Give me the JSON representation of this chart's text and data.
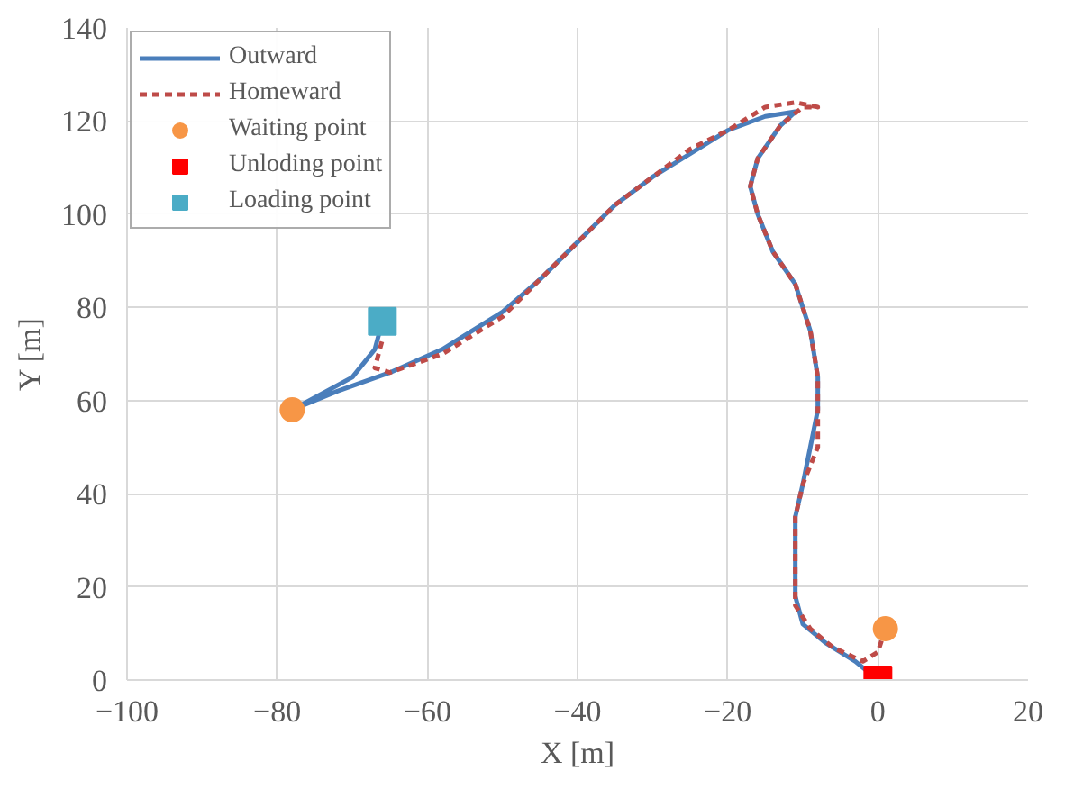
{
  "chart_data": {
    "type": "line",
    "xlabel": "X [m]",
    "ylabel": "Y [m]",
    "xlim": [
      -100,
      20
    ],
    "xticks": [
      -100,
      -80,
      -60,
      -40,
      -20,
      0,
      20
    ],
    "ylim": [
      0,
      140
    ],
    "yticks": [
      0,
      20,
      40,
      60,
      80,
      100,
      120,
      140
    ],
    "grid": true,
    "legend": "top left",
    "series": [
      {
        "name": "Outward",
        "color": "#4a7ebb",
        "line_style": "solid",
        "x": [
          -66,
          -67,
          -70,
          -78,
          -72,
          -65,
          -58,
          -50,
          -45,
          -40,
          -35,
          -30,
          -25,
          -20,
          -15,
          -11,
          -13,
          -16,
          -17,
          -16,
          -14,
          -11,
          -9,
          -8,
          -8,
          -9,
          -10,
          -11,
          -11,
          -11,
          -10,
          -7,
          -3,
          0
        ],
        "values": [
          77,
          71,
          65,
          58,
          62,
          66,
          71,
          79,
          86,
          94,
          102,
          108,
          113,
          118,
          121,
          122,
          119,
          112,
          106,
          100,
          92,
          85,
          75,
          65,
          58,
          50,
          42,
          35,
          25,
          18,
          12,
          8,
          4,
          0
        ]
      },
      {
        "name": "Homeward",
        "color": "#be4b48",
        "line_style": "dashed",
        "x": [
          1,
          0,
          -2,
          -6,
          -9,
          -11,
          -11,
          -11,
          -10,
          -8,
          -8,
          -8,
          -9,
          -11,
          -14,
          -16,
          -17,
          -16,
          -13,
          -10,
          -8,
          -11,
          -15,
          -20,
          -25,
          -30,
          -35,
          -40,
          -45,
          -50,
          -58,
          -65,
          -67,
          -66
        ],
        "values": [
          11,
          6,
          4,
          7,
          11,
          16,
          25,
          35,
          42,
          50,
          58,
          65,
          75,
          85,
          92,
          100,
          106,
          112,
          119,
          123,
          123,
          124,
          123,
          118,
          114,
          108,
          102,
          94,
          86,
          78,
          70,
          66,
          67,
          73
        ]
      },
      {
        "name": "Waiting point",
        "type": "scatter",
        "color": "#f79646",
        "marker": "circle",
        "x": [
          -78,
          1
        ],
        "values": [
          58,
          11
        ]
      },
      {
        "name": "Unloding point",
        "type": "scatter",
        "color": "#ff0000",
        "marker": "square",
        "x": [
          0
        ],
        "values": [
          0
        ]
      },
      {
        "name": "Loading point",
        "type": "scatter",
        "color": "#4bacc6",
        "marker": "square",
        "x": [
          -66
        ],
        "values": [
          77
        ]
      }
    ]
  }
}
